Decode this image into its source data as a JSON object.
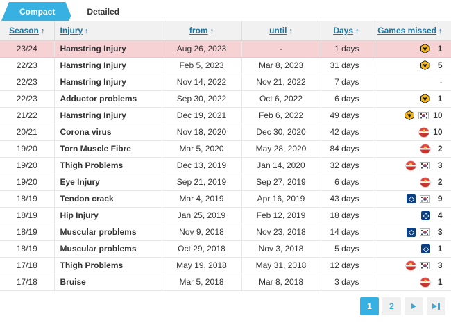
{
  "tabs": [
    {
      "key": "compact",
      "label": "Compact",
      "active": true
    },
    {
      "key": "detailed",
      "label": "Detailed",
      "active": false
    }
  ],
  "table": {
    "sort_icon": "↕",
    "columns": [
      {
        "key": "season",
        "label": "Season"
      },
      {
        "key": "injury",
        "label": "Injury"
      },
      {
        "key": "from",
        "label": "from"
      },
      {
        "key": "until",
        "label": "until"
      },
      {
        "key": "days",
        "label": "Days"
      },
      {
        "key": "games-missed",
        "label": "Games missed"
      }
    ],
    "rows": [
      {
        "season": "23/24",
        "injury": "Hamstring Injury",
        "from": "Aug 26, 2023",
        "until": "-",
        "days": "1 days",
        "games_missed": "1",
        "clubs": [
          "wolves"
        ],
        "highlighted": true
      },
      {
        "season": "22/23",
        "injury": "Hamstring Injury",
        "from": "Feb 5, 2023",
        "until": "Mar 8, 2023",
        "days": "31 days",
        "games_missed": "5",
        "clubs": [
          "wolves"
        ],
        "highlighted": false
      },
      {
        "season": "22/23",
        "injury": "Hamstring Injury",
        "from": "Nov 14, 2022",
        "until": "Nov 21, 2022",
        "days": "7 days",
        "games_missed": "-",
        "clubs": [],
        "highlighted": false
      },
      {
        "season": "22/23",
        "injury": "Adductor problems",
        "from": "Sep 30, 2022",
        "until": "Oct 6, 2022",
        "days": "6 days",
        "games_missed": "1",
        "clubs": [
          "wolves"
        ],
        "highlighted": false
      },
      {
        "season": "21/22",
        "injury": "Hamstring Injury",
        "from": "Dec 19, 2021",
        "until": "Feb 6, 2022",
        "days": "49 days",
        "games_missed": "10",
        "clubs": [
          "wolves",
          "kor"
        ],
        "highlighted": false
      },
      {
        "season": "20/21",
        "injury": "Corona virus",
        "from": "Nov 18, 2020",
        "until": "Dec 30, 2020",
        "days": "42 days",
        "games_missed": "10",
        "clubs": [
          "redbull"
        ],
        "highlighted": false
      },
      {
        "season": "19/20",
        "injury": "Torn Muscle Fibre",
        "from": "Mar 5, 2020",
        "until": "May 28, 2020",
        "days": "84 days",
        "games_missed": "2",
        "clubs": [
          "redbull"
        ],
        "highlighted": false
      },
      {
        "season": "19/20",
        "injury": "Thigh Problems",
        "from": "Dec 13, 2019",
        "until": "Jan 14, 2020",
        "days": "32 days",
        "games_missed": "3",
        "clubs": [
          "redbull",
          "kor"
        ],
        "highlighted": false
      },
      {
        "season": "19/20",
        "injury": "Eye Injury",
        "from": "Sep 21, 2019",
        "until": "Sep 27, 2019",
        "days": "6 days",
        "games_missed": "2",
        "clubs": [
          "redbull"
        ],
        "highlighted": false
      },
      {
        "season": "18/19",
        "injury": "Tendon crack",
        "from": "Mar 4, 2019",
        "until": "Apr 16, 2019",
        "days": "43 days",
        "games_missed": "9",
        "clubs": [
          "hsv",
          "kor"
        ],
        "highlighted": false
      },
      {
        "season": "18/19",
        "injury": "Hip Injury",
        "from": "Jan 25, 2019",
        "until": "Feb 12, 2019",
        "days": "18 days",
        "games_missed": "4",
        "clubs": [
          "hsv"
        ],
        "highlighted": false
      },
      {
        "season": "18/19",
        "injury": "Muscular problems",
        "from": "Nov 9, 2018",
        "until": "Nov 23, 2018",
        "days": "14 days",
        "games_missed": "3",
        "clubs": [
          "hsv",
          "kor"
        ],
        "highlighted": false
      },
      {
        "season": "18/19",
        "injury": "Muscular problems",
        "from": "Oct 29, 2018",
        "until": "Nov 3, 2018",
        "days": "5 days",
        "games_missed": "1",
        "clubs": [
          "hsv"
        ],
        "highlighted": false
      },
      {
        "season": "17/18",
        "injury": "Thigh Problems",
        "from": "May 19, 2018",
        "until": "May 31, 2018",
        "days": "12 days",
        "games_missed": "3",
        "clubs": [
          "redbull",
          "kor"
        ],
        "highlighted": false
      },
      {
        "season": "17/18",
        "injury": "Bruise",
        "from": "Mar 5, 2018",
        "until": "Mar 8, 2018",
        "days": "3 days",
        "games_missed": "1",
        "clubs": [
          "redbull"
        ],
        "highlighted": false
      }
    ],
    "icons": {
      "wolves": "wolves-crest-icon",
      "redbull": "red-bull-crest-icon",
      "hsv": "hsv-crest-icon",
      "kor": "south-korea-flag-icon"
    }
  },
  "pagination": {
    "pages": [
      "1",
      "2"
    ],
    "active_page": "1",
    "next_icon": "next-page-arrow",
    "last_icon": "last-page-arrow"
  },
  "colors": {
    "accent_blue": "#36b1e2",
    "header_link_blue": "#1d75a3",
    "highlight_row_pink": "#f6d2d5",
    "header_bg_gray": "#f1f1f1",
    "wolves_gold": "#fdb913",
    "hsv_navy": "#0a3f86",
    "redbull_red": "#d8342f"
  }
}
